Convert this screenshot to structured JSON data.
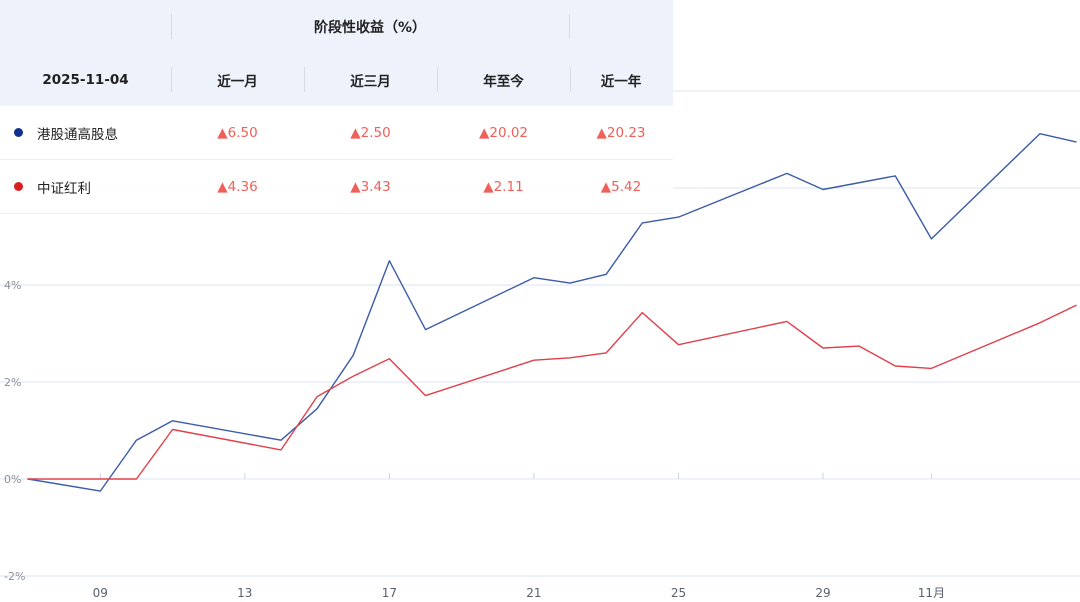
{
  "panel": {
    "title": "阶段性收益（%）",
    "date": "2025-11-04",
    "columns": [
      "近一月",
      "近三月",
      "年至今",
      "近一年"
    ],
    "rows": [
      {
        "name": "港股通高股息",
        "color": "#12318f",
        "values": [
          "▲6.50",
          "▲2.50",
          "▲20.02",
          "▲20.23"
        ]
      },
      {
        "name": "中证红利",
        "color": "#d81e1e",
        "values": [
          "▲4.36",
          "▲3.43",
          "▲2.11",
          "▲5.42"
        ]
      }
    ]
  },
  "chart_data": {
    "type": "line",
    "y_ticks": [
      {
        "value": -2,
        "label": "-2%"
      },
      {
        "value": 0,
        "label": "0%"
      },
      {
        "value": 2,
        "label": "2%"
      },
      {
        "value": 4,
        "label": "4%"
      }
    ],
    "ylim": [
      -2,
      8
    ],
    "x_ticks": [
      {
        "day": 9,
        "label": "09"
      },
      {
        "day": 13,
        "label": "13"
      },
      {
        "day": 17,
        "label": "17"
      },
      {
        "day": 21,
        "label": "21"
      },
      {
        "day": 25,
        "label": "25"
      },
      {
        "day": 29,
        "label": "29"
      },
      {
        "day": 32,
        "label": "11月"
      }
    ],
    "xlim": [
      7,
      36
    ],
    "series": [
      {
        "name": "港股通高股息",
        "color": "#3b5ca8",
        "points": [
          [
            7,
            0
          ],
          [
            9,
            -0.25
          ],
          [
            10,
            0.8
          ],
          [
            11,
            1.2
          ],
          [
            14,
            0.8
          ],
          [
            15,
            1.45
          ],
          [
            16,
            2.55
          ],
          [
            17,
            4.5
          ],
          [
            18,
            3.08
          ],
          [
            21,
            4.15
          ],
          [
            22,
            4.04
          ],
          [
            23,
            4.22
          ],
          [
            24,
            5.28
          ],
          [
            25,
            5.4
          ],
          [
            28,
            6.3
          ],
          [
            29,
            5.97
          ],
          [
            31,
            6.25
          ],
          [
            32,
            4.95
          ],
          [
            35,
            7.12
          ],
          [
            36,
            6.95
          ]
        ]
      },
      {
        "name": "中证红利",
        "color": "#e0404a",
        "points": [
          [
            7,
            0
          ],
          [
            10,
            0
          ],
          [
            11,
            1.02
          ],
          [
            14,
            0.6
          ],
          [
            15,
            1.7
          ],
          [
            16,
            2.12
          ],
          [
            17,
            2.48
          ],
          [
            18,
            1.72
          ],
          [
            21,
            2.45
          ],
          [
            22,
            2.5
          ],
          [
            23,
            2.6
          ],
          [
            24,
            3.43
          ],
          [
            25,
            2.77
          ],
          [
            28,
            3.25
          ],
          [
            29,
            2.7
          ],
          [
            30,
            2.74
          ],
          [
            31,
            2.33
          ],
          [
            32,
            2.28
          ],
          [
            35,
            3.22
          ],
          [
            36,
            3.58
          ]
        ]
      }
    ]
  }
}
